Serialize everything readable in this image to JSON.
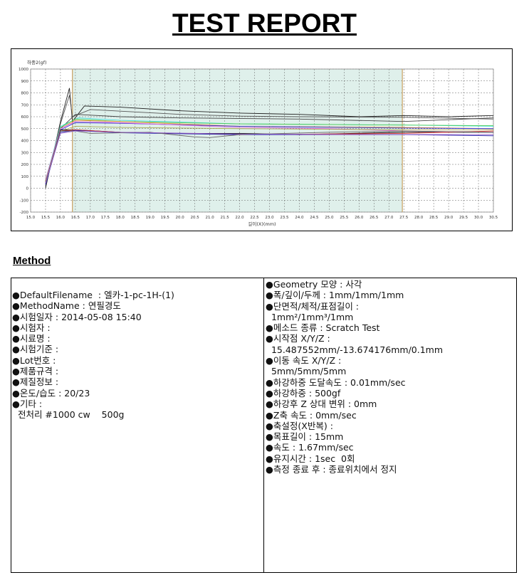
{
  "title": "TEST REPORT",
  "method_heading": "Method",
  "chart_data": {
    "type": "line",
    "ylabel": "하중2(gf)",
    "xlabel": "길이(X)(mm)",
    "xlim": [
      15.0,
      30.5
    ],
    "ylim": [
      -200,
      1000
    ],
    "xticks": [
      "15.0",
      "15.5",
      "16.0",
      "16.5",
      "17.0",
      "17.5",
      "18.0",
      "18.5",
      "19.0",
      "19.5",
      "20.0",
      "20.5",
      "21.0",
      "21.5",
      "22.0",
      "22.5",
      "23.0",
      "23.5",
      "24.0",
      "24.5",
      "25.0",
      "25.5",
      "26.0",
      "26.5",
      "27.0",
      "27.5",
      "28.0",
      "28.5",
      "29.0",
      "29.5",
      "30.0",
      "30.5"
    ],
    "yticks": [
      "1000",
      "900",
      "800",
      "700",
      "600",
      "500",
      "400",
      "300",
      "200",
      "100",
      "0",
      "-100",
      "-200"
    ],
    "grid": true,
    "shaded_region": [
      16.4,
      27.45
    ],
    "shade_color": "#dff0eb",
    "marker_color": "#c8a060",
    "series": [
      {
        "color": "#222222",
        "points": [
          [
            15.5,
            0
          ],
          [
            16.0,
            560
          ],
          [
            16.3,
            840
          ],
          [
            16.4,
            560
          ],
          [
            16.8,
            690
          ],
          [
            18,
            680
          ],
          [
            20,
            650
          ],
          [
            22,
            630
          ],
          [
            24,
            620
          ],
          [
            26,
            600
          ],
          [
            27.5,
            610
          ],
          [
            29,
            600
          ],
          [
            30.5,
            610
          ]
        ]
      },
      {
        "color": "#555555",
        "points": [
          [
            15.5,
            20
          ],
          [
            16.0,
            540
          ],
          [
            16.3,
            780
          ],
          [
            16.4,
            600
          ],
          [
            17,
            660
          ],
          [
            20,
            620
          ],
          [
            22,
            605
          ],
          [
            24,
            600
          ],
          [
            27.5,
            595
          ],
          [
            30.5,
            580
          ]
        ]
      },
      {
        "color": "#444444",
        "points": [
          [
            15.5,
            60
          ],
          [
            16.0,
            500
          ],
          [
            16.5,
            620
          ],
          [
            18,
            600
          ],
          [
            20,
            590
          ],
          [
            24,
            580
          ],
          [
            27.5,
            560
          ],
          [
            30.5,
            590
          ]
        ]
      },
      {
        "color": "#44dddd",
        "points": [
          [
            15.5,
            70
          ],
          [
            16.0,
            520
          ],
          [
            16.6,
            590
          ],
          [
            18,
            570
          ],
          [
            22,
            540
          ],
          [
            27.5,
            530
          ],
          [
            30.5,
            520
          ]
        ]
      },
      {
        "color": "#55cc55",
        "points": [
          [
            15.5,
            60
          ],
          [
            16,
            510
          ],
          [
            16.5,
            580
          ],
          [
            18,
            560
          ],
          [
            22,
            540
          ],
          [
            27.5,
            530
          ],
          [
            30.5,
            525
          ]
        ]
      },
      {
        "color": "#ee9933",
        "points": [
          [
            15.5,
            60
          ],
          [
            16,
            500
          ],
          [
            16.5,
            570
          ],
          [
            18,
            560
          ],
          [
            22,
            520
          ],
          [
            27.5,
            510
          ],
          [
            30.5,
            500
          ]
        ]
      },
      {
        "color": "#3333cc",
        "points": [
          [
            15.5,
            50
          ],
          [
            16,
            490
          ],
          [
            16.5,
            550
          ],
          [
            18,
            545
          ],
          [
            22,
            520
          ],
          [
            27.5,
            505
          ],
          [
            30.5,
            500
          ]
        ]
      },
      {
        "color": "#dd66dd",
        "points": [
          [
            15.5,
            70
          ],
          [
            16,
            500
          ],
          [
            16.5,
            560
          ],
          [
            18,
            550
          ],
          [
            22,
            510
          ],
          [
            25,
            500
          ],
          [
            27.5,
            480
          ],
          [
            30.5,
            470
          ]
        ]
      },
      {
        "color": "#aaaa55",
        "points": [
          [
            15.5,
            60
          ],
          [
            16,
            480
          ],
          [
            16.5,
            520
          ],
          [
            18,
            510
          ],
          [
            22,
            500
          ],
          [
            27.5,
            490
          ],
          [
            30.5,
            490
          ]
        ]
      },
      {
        "color": "#000000",
        "points": [
          [
            15.5,
            40
          ],
          [
            16,
            490
          ],
          [
            16.5,
            490
          ],
          [
            18,
            470
          ],
          [
            20,
            460
          ],
          [
            22,
            460
          ],
          [
            24,
            450
          ],
          [
            27.5,
            470
          ],
          [
            30.5,
            470
          ]
        ]
      },
      {
        "color": "#dd3333",
        "points": [
          [
            15.5,
            50
          ],
          [
            16,
            480
          ],
          [
            16.5,
            490
          ],
          [
            18,
            470
          ],
          [
            22,
            450
          ],
          [
            27.5,
            460
          ],
          [
            30.5,
            480
          ]
        ]
      },
      {
        "color": "#2222aa",
        "points": [
          [
            15.5,
            30
          ],
          [
            16,
            470
          ],
          [
            16.5,
            485
          ],
          [
            18,
            465
          ],
          [
            22,
            450
          ],
          [
            27.5,
            450
          ],
          [
            30.5,
            440
          ]
        ]
      },
      {
        "color": "#666666",
        "points": [
          [
            15.5,
            50
          ],
          [
            16,
            480
          ],
          [
            16.5,
            480
          ],
          [
            17,
            460
          ],
          [
            19,
            470
          ],
          [
            20.5,
            430
          ],
          [
            21,
            425
          ],
          [
            22,
            450
          ],
          [
            25,
            470
          ],
          [
            27.5,
            480
          ],
          [
            30.5,
            470
          ]
        ]
      },
      {
        "color": "#9966cc",
        "points": [
          [
            15.5,
            40
          ],
          [
            16,
            460
          ],
          [
            16.5,
            480
          ],
          [
            18,
            470
          ],
          [
            22,
            455
          ],
          [
            26,
            450
          ],
          [
            30.5,
            450
          ]
        ]
      }
    ]
  },
  "left": [
    "●DefaultFilename  : 엘카-1-pc-1H-(1)",
    "●MethodName : 연필경도",
    "●시험일자 : 2014-05-08 15:40",
    "●시험자 :",
    "●시료명 :",
    "●시험기준 :",
    "●Lot번호 :",
    "●제품규격 :",
    "●제질정보 :",
    "●온도/습도 : 20/23",
    "●기타 :",
    "  전처리 #1000 cw    500g"
  ],
  "right": [
    "●Geometry 모양 : 사각",
    "●폭/깊이/두께 : 1mm/1mm/1mm",
    "●단면적/체적/표점길이 :",
    "  1mm²/1mm³/1mm",
    "●메소드 종류 : Scratch Test",
    "●시작점 X/Y/Z :",
    "  15.487552mm/-13.674176mm/0.1mm",
    "●이동 속도 X/Y/Z :",
    "  5mm/5mm/5mm",
    "●하강하중 도달속도 : 0.01mm/sec",
    "●하강하중 : 500gf",
    "●하강후 Z 상대 변위 : 0mm",
    "●Z축 속도 : 0mm/sec",
    "●축설정(X반복) :",
    "●목표길이 : 15mm",
    "●속도 : 1.67mm/sec",
    "●유지시간 : 1sec  0회",
    "●측정 종료 후 : 종료위치에서 정지"
  ]
}
